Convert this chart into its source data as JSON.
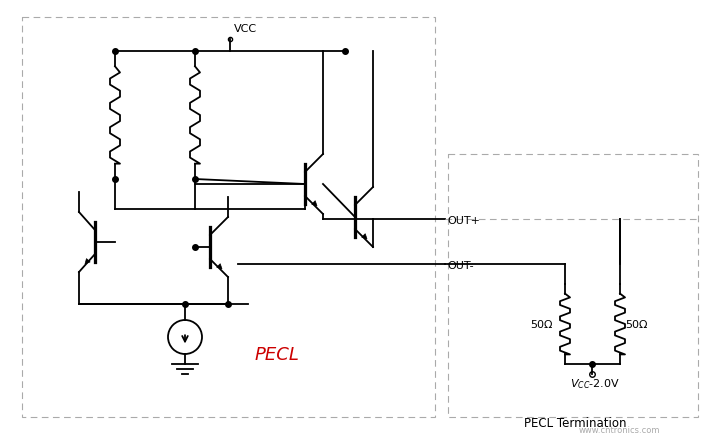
{
  "background_color": "#ffffff",
  "title": "PECL Termination",
  "pecl_label": "PECL",
  "pecl_label_color": "#cc0000",
  "vcc_label": "VCC",
  "out_plus_label": "OUT+",
  "out_minus_label": "OUT-",
  "r1_label": "50Ω",
  "r2_label": "50Ω",
  "line_color": "#000000",
  "dashed_box_color": "#aaaaaa",
  "figure_size": [
    7.2,
    4.39
  ],
  "dpi": 100,
  "watermark": "www.cntronics.com",
  "watermark_color": "#aaaaaa"
}
